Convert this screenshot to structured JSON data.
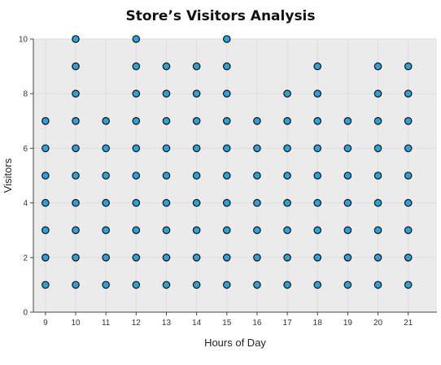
{
  "chart_data": {
    "type": "scatter",
    "title": "Store’s Visitors Analysis",
    "xlabel": "Hours of Day",
    "ylabel": "Visitors",
    "xlim": [
      8.6,
      21.95
    ],
    "ylim": [
      0,
      10
    ],
    "x_ticks": [
      9,
      10,
      11,
      12,
      13,
      14,
      15,
      16,
      17,
      18,
      19,
      20,
      21
    ],
    "y_ticks": [
      0,
      2,
      4,
      6,
      8,
      10
    ],
    "grid": true,
    "legend": "none",
    "colors": {
      "marker_fill": "#29a3dd",
      "marker_stroke": "#111111",
      "plot_bg": "#ebebeb",
      "grid": "#dedede"
    },
    "series": [
      {
        "points": [
          [
            9,
            1
          ],
          [
            9,
            2
          ],
          [
            9,
            3
          ],
          [
            9,
            4
          ],
          [
            9,
            5
          ],
          [
            9,
            6
          ],
          [
            9,
            7
          ],
          [
            10,
            1
          ],
          [
            10,
            2
          ],
          [
            10,
            3
          ],
          [
            10,
            4
          ],
          [
            10,
            5
          ],
          [
            10,
            6
          ],
          [
            10,
            7
          ],
          [
            10,
            8
          ],
          [
            10,
            9
          ],
          [
            10,
            10
          ],
          [
            11,
            1
          ],
          [
            11,
            2
          ],
          [
            11,
            3
          ],
          [
            11,
            4
          ],
          [
            11,
            5
          ],
          [
            11,
            6
          ],
          [
            11,
            7
          ],
          [
            12,
            1
          ],
          [
            12,
            2
          ],
          [
            12,
            3
          ],
          [
            12,
            4
          ],
          [
            12,
            5
          ],
          [
            12,
            6
          ],
          [
            12,
            7
          ],
          [
            12,
            8
          ],
          [
            12,
            9
          ],
          [
            12,
            10
          ],
          [
            13,
            1
          ],
          [
            13,
            2
          ],
          [
            13,
            3
          ],
          [
            13,
            4
          ],
          [
            13,
            5
          ],
          [
            13,
            6
          ],
          [
            13,
            7
          ],
          [
            13,
            8
          ],
          [
            13,
            9
          ],
          [
            14,
            1
          ],
          [
            14,
            2
          ],
          [
            14,
            3
          ],
          [
            14,
            4
          ],
          [
            14,
            5
          ],
          [
            14,
            6
          ],
          [
            14,
            7
          ],
          [
            14,
            8
          ],
          [
            14,
            9
          ],
          [
            15,
            1
          ],
          [
            15,
            2
          ],
          [
            15,
            3
          ],
          [
            15,
            4
          ],
          [
            15,
            5
          ],
          [
            15,
            6
          ],
          [
            15,
            7
          ],
          [
            15,
            8
          ],
          [
            15,
            9
          ],
          [
            15,
            10
          ],
          [
            16,
            1
          ],
          [
            16,
            2
          ],
          [
            16,
            3
          ],
          [
            16,
            4
          ],
          [
            16,
            5
          ],
          [
            16,
            6
          ],
          [
            16,
            7
          ],
          [
            17,
            1
          ],
          [
            17,
            2
          ],
          [
            17,
            3
          ],
          [
            17,
            4
          ],
          [
            17,
            5
          ],
          [
            17,
            6
          ],
          [
            17,
            7
          ],
          [
            17,
            8
          ],
          [
            18,
            1
          ],
          [
            18,
            2
          ],
          [
            18,
            3
          ],
          [
            18,
            4
          ],
          [
            18,
            5
          ],
          [
            18,
            6
          ],
          [
            18,
            7
          ],
          [
            18,
            8
          ],
          [
            18,
            9
          ],
          [
            19,
            1
          ],
          [
            19,
            2
          ],
          [
            19,
            3
          ],
          [
            19,
            4
          ],
          [
            19,
            5
          ],
          [
            19,
            6
          ],
          [
            19,
            7
          ],
          [
            20,
            1
          ],
          [
            20,
            2
          ],
          [
            20,
            3
          ],
          [
            20,
            4
          ],
          [
            20,
            5
          ],
          [
            20,
            6
          ],
          [
            20,
            7
          ],
          [
            20,
            8
          ],
          [
            20,
            9
          ],
          [
            21,
            1
          ],
          [
            21,
            2
          ],
          [
            21,
            3
          ],
          [
            21,
            4
          ],
          [
            21,
            5
          ],
          [
            21,
            6
          ],
          [
            21,
            7
          ],
          [
            21,
            8
          ],
          [
            21,
            9
          ]
        ]
      }
    ]
  }
}
